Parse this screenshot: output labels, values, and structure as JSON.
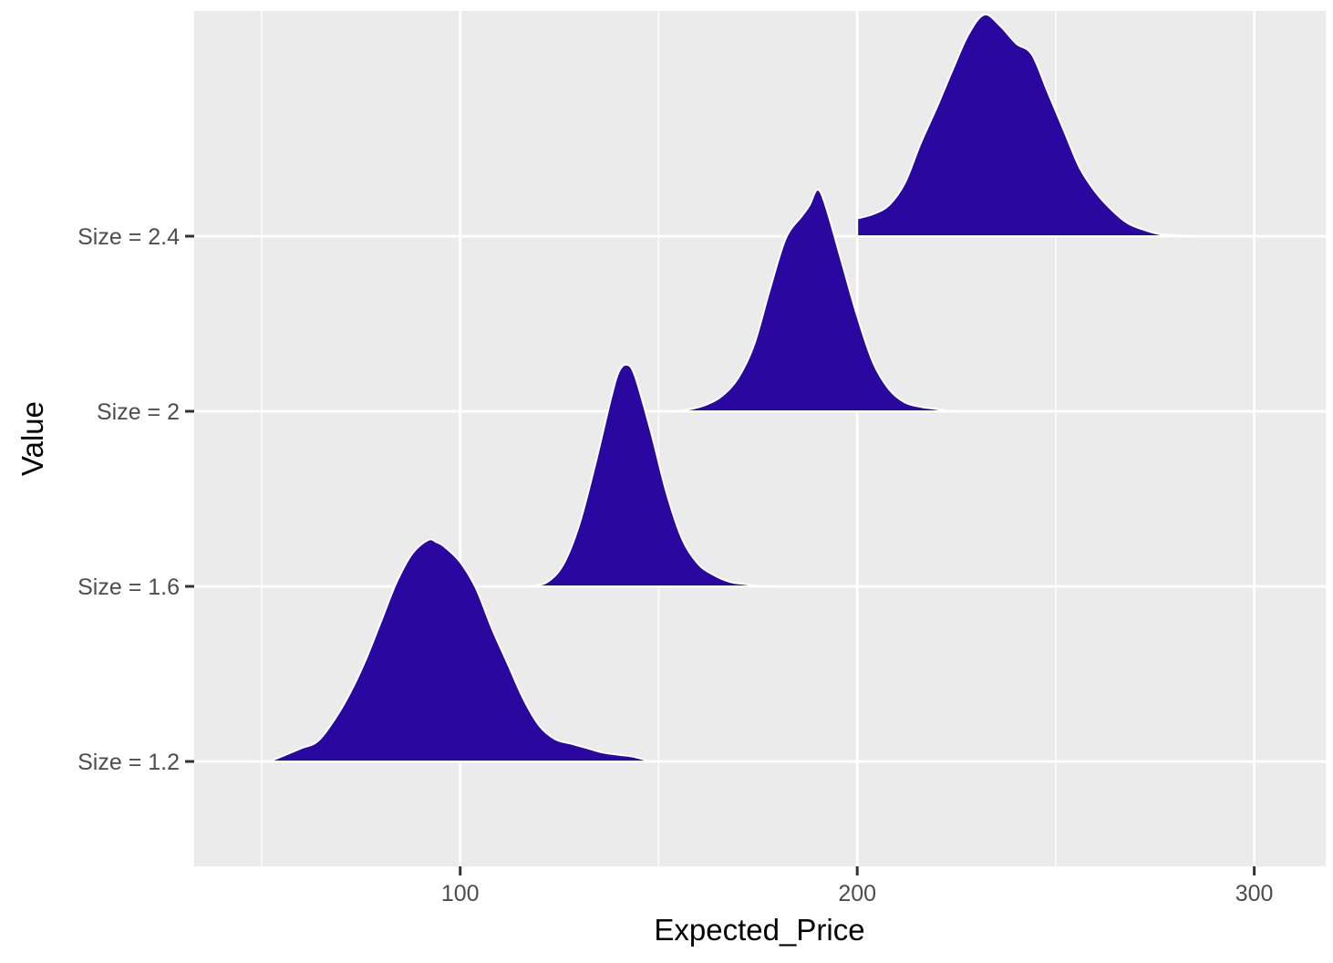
{
  "chart_data": {
    "type": "ridgeline",
    "xlabel": "Expected_Price",
    "ylabel": "Value",
    "xlim": [
      33,
      318
    ],
    "x_ticks": [
      100,
      200,
      300
    ],
    "x_tick_labels": [
      "100",
      "200",
      "300"
    ],
    "x_minor_ticks": [
      50,
      150,
      250
    ],
    "categories": [
      "Size = 1.2",
      "Size = 1.6",
      "Size = 2",
      "Size = 2.4"
    ],
    "grid": true,
    "fill_color": "#2A089F",
    "outline_color": "#FFFFFF",
    "panel_background": "#EBEBEB",
    "series": [
      {
        "name": "Size = 1.2",
        "x": [
          52,
          56,
          60,
          64,
          68,
          72,
          76,
          80,
          84,
          88,
          92,
          94,
          96,
          100,
          104,
          108,
          112,
          116,
          120,
          124,
          128,
          132,
          136,
          140,
          144,
          148
        ],
        "density": [
          0.0,
          0.03,
          0.06,
          0.09,
          0.18,
          0.3,
          0.45,
          0.63,
          0.81,
          0.94,
          1.0,
          0.99,
          0.97,
          0.9,
          0.78,
          0.6,
          0.44,
          0.28,
          0.16,
          0.1,
          0.08,
          0.06,
          0.04,
          0.03,
          0.02,
          0.0
        ]
      },
      {
        "name": "Size = 1.6",
        "x": [
          118,
          122,
          126,
          130,
          134,
          138,
          140,
          142,
          144,
          148,
          152,
          156,
          160,
          164,
          168,
          172,
          176,
          180
        ],
        "density": [
          0.0,
          0.02,
          0.1,
          0.28,
          0.55,
          0.85,
          0.97,
          1.0,
          0.95,
          0.7,
          0.42,
          0.21,
          0.1,
          0.05,
          0.02,
          0.01,
          0.0,
          0.0
        ]
      },
      {
        "name": "Size = 2",
        "x": [
          154,
          158,
          162,
          166,
          170,
          174,
          178,
          182,
          186,
          188,
          190,
          192,
          196,
          200,
          204,
          208,
          212,
          216,
          220,
          224,
          226
        ],
        "density": [
          0.0,
          0.01,
          0.03,
          0.07,
          0.15,
          0.3,
          0.55,
          0.78,
          0.88,
          0.93,
          1.0,
          0.93,
          0.68,
          0.43,
          0.22,
          0.1,
          0.04,
          0.02,
          0.01,
          0.0,
          0.0
        ]
      },
      {
        "name": "Size = 2.4",
        "x": [
          200,
          204,
          208,
          212,
          216,
          220,
          224,
          228,
          232,
          236,
          240,
          244,
          248,
          252,
          256,
          260,
          264,
          268,
          272,
          276,
          280,
          286
        ],
        "density": [
          0.08,
          0.1,
          0.14,
          0.24,
          0.42,
          0.58,
          0.75,
          0.91,
          1.0,
          0.95,
          0.87,
          0.82,
          0.65,
          0.48,
          0.31,
          0.2,
          0.12,
          0.06,
          0.03,
          0.01,
          0.005,
          0.0
        ]
      }
    ]
  }
}
